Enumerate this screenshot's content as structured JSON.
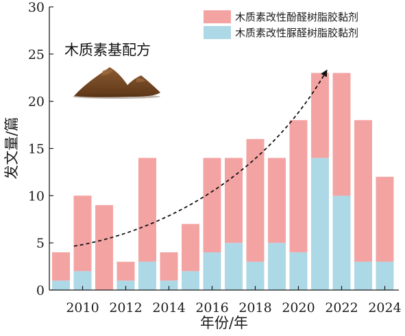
{
  "chart_data": {
    "type": "bar",
    "stacked": true,
    "categories": [
      "2009",
      "2010",
      "2011",
      "2012",
      "2013",
      "2014",
      "2015",
      "2016",
      "2017",
      "2018",
      "2019",
      "2020",
      "2021",
      "2022",
      "2023",
      "2024"
    ],
    "x_tick_labels": [
      "2010",
      "2012",
      "2014",
      "2016",
      "2018",
      "2020",
      "2022",
      "2024"
    ],
    "series": [
      {
        "name": "木质素改性脲醛树脂胶黏剂",
        "color": "#add8e6",
        "values": [
          1,
          2,
          0,
          1,
          3,
          1,
          2,
          4,
          5,
          3,
          5,
          4,
          14,
          10,
          3,
          3
        ]
      },
      {
        "name": "木质素改性酚醛树脂胶黏剂",
        "color": "#f4a3a3",
        "values": [
          3,
          8,
          9,
          2,
          11,
          3,
          5,
          10,
          9,
          13,
          9,
          14,
          9,
          13,
          15,
          9
        ]
      }
    ],
    "xlabel": "年份/年",
    "ylabel": "发文量/篇",
    "ylim": [
      0,
      30
    ],
    "yticks": [
      0,
      5,
      10,
      15,
      20,
      25,
      30
    ],
    "legend_position": "top-right",
    "grid": false,
    "annotations": [
      {
        "type": "text",
        "text": "木质素基配方"
      },
      {
        "type": "image",
        "name": "lignin-powder-pile"
      },
      {
        "type": "arrow",
        "style": "dashed-curve",
        "from_year": "2009",
        "to_year": "2021",
        "label": ""
      }
    ]
  }
}
